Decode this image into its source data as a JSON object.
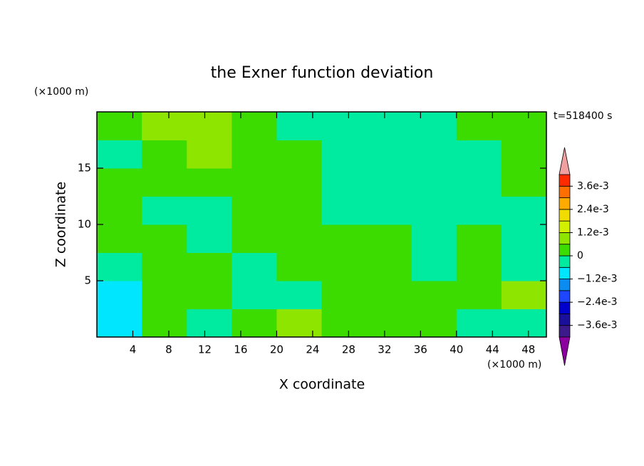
{
  "chart_data": {
    "type": "contour",
    "title": "the Exner function deviation",
    "xlabel": "X coordinate",
    "ylabel": "Z coordinate",
    "xunit": "(×1000 m)",
    "yunit": "(×1000 m)",
    "annotation": "t=518400 s",
    "xlim": [
      0,
      50
    ],
    "ylim": [
      0,
      20
    ],
    "xticks": [
      4,
      8,
      12,
      16,
      20,
      24,
      28,
      32,
      36,
      40,
      44,
      48
    ],
    "yticks": [
      5,
      10,
      15
    ],
    "x": [
      2.5,
      7.5,
      12.5,
      17.5,
      22.5,
      27.5,
      32.5,
      37.5,
      42.5,
      47.5
    ],
    "y": [
      1.25,
      3.75,
      6.25,
      8.75,
      11.25,
      13.75,
      16.25,
      18.75
    ],
    "z": [
      [
        -0.0009,
        0.0003,
        -0.0003,
        0.0003,
        0.0009,
        0.0003,
        0.0003,
        0.0003,
        -0.0003,
        -0.0003
      ],
      [
        -0.0009,
        0.0003,
        0.0003,
        -0.0003,
        -0.0003,
        0.0003,
        0.0003,
        0.0003,
        0.0003,
        0.0009
      ],
      [
        -0.0003,
        0.0003,
        0.0003,
        -0.0003,
        0.0003,
        0.0003,
        0.0003,
        -0.0003,
        0.0003,
        -0.0003
      ],
      [
        0.0003,
        0.0003,
        -0.0003,
        0.0003,
        0.0003,
        0.0003,
        0.0003,
        -0.0003,
        0.0003,
        -0.0003
      ],
      [
        0.0003,
        -0.0003,
        -0.0003,
        0.0003,
        0.0003,
        -0.0003,
        -0.0003,
        -0.0003,
        -0.0003,
        -0.0003
      ],
      [
        0.0003,
        0.0003,
        0.0003,
        0.0003,
        0.0003,
        -0.0003,
        -0.0003,
        -0.0003,
        -0.0003,
        0.0003
      ],
      [
        -0.0003,
        0.0003,
        0.0009,
        0.0003,
        0.0003,
        -0.0003,
        -0.0003,
        -0.0003,
        -0.0003,
        0.0003
      ],
      [
        0.0003,
        0.0009,
        0.0009,
        0.0003,
        -0.0003,
        -0.0003,
        -0.0003,
        -0.0003,
        0.0003,
        0.0003
      ]
    ],
    "levels": [
      -0.0042,
      -0.0036,
      -0.003,
      -0.0024,
      -0.0018,
      -0.0012,
      -0.0006,
      0,
      0.0006,
      0.0012,
      0.0018,
      0.0024,
      0.003,
      0.0036,
      0.0042
    ],
    "colors": [
      "#3c1a8c",
      "#1a0f9a",
      "#0000cd",
      "#1e46ff",
      "#0a8cf0",
      "#00e6ff",
      "#00eaa0",
      "#3cdc00",
      "#8ee600",
      "#d2f000",
      "#f0dc00",
      "#ffaa00",
      "#ff6e00",
      "#ff2a00"
    ],
    "under_color": "#8c00a0",
    "over_color": "#f0a0a0",
    "cticks": [
      {
        "value": 0.0036,
        "label": "3.6e-3"
      },
      {
        "value": 0.0024,
        "label": "2.4e-3"
      },
      {
        "value": 0.0012,
        "label": "1.2e-3"
      },
      0,
      {
        "value": -0.0012,
        "label": "−1.2e-3"
      },
      {
        "value": -0.0024,
        "label": "−2.4e-3"
      },
      {
        "value": -0.0036,
        "label": "−3.6e-3"
      }
    ]
  }
}
